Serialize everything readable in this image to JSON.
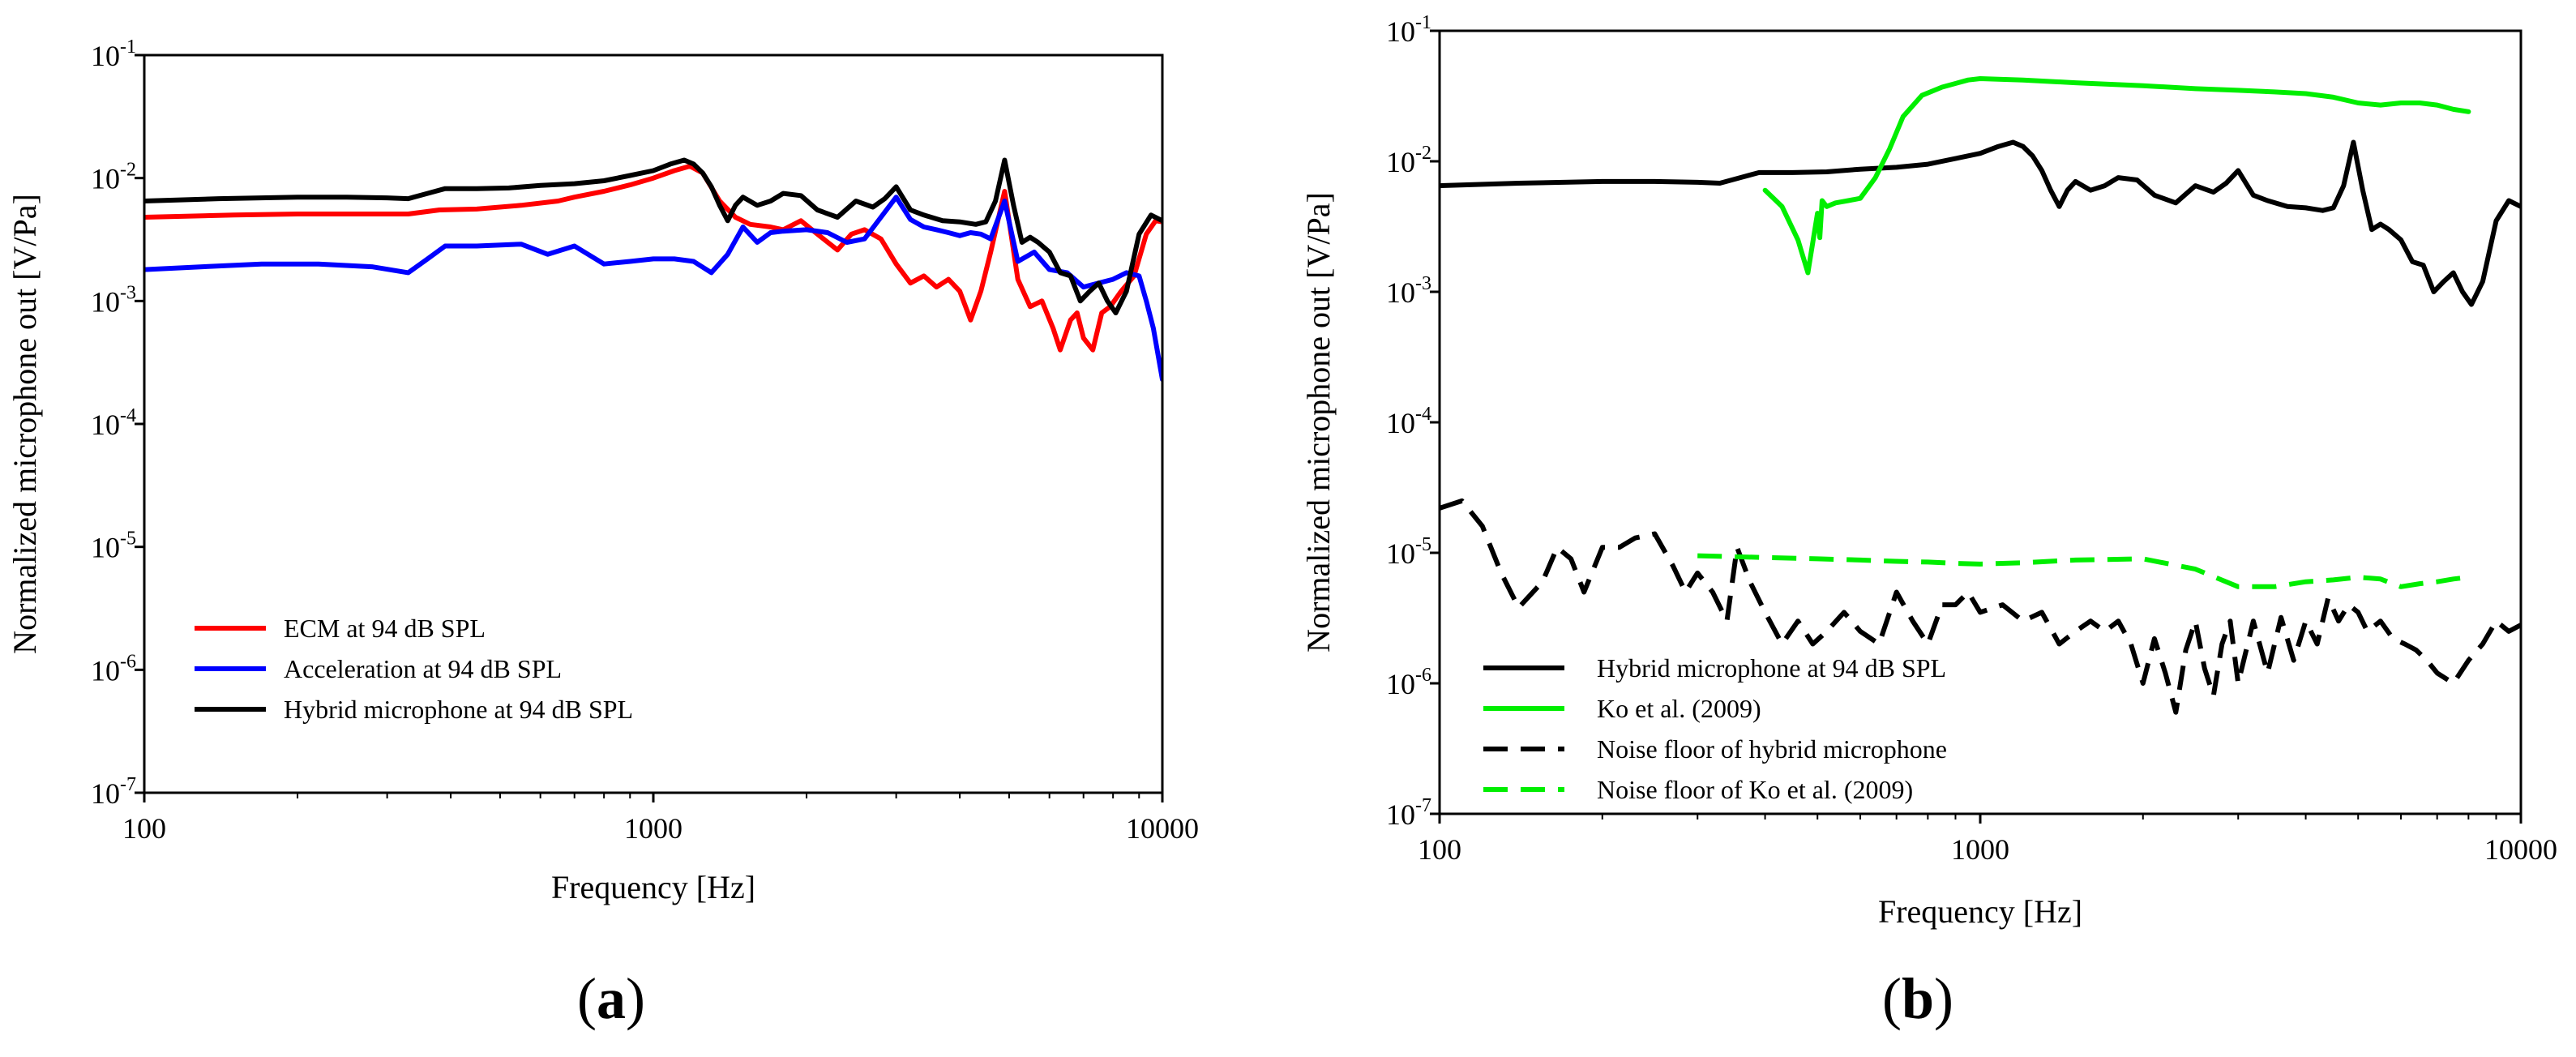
{
  "figure": {
    "panels": [
      {
        "open": "(",
        "letter": "a",
        "close": ")"
      },
      {
        "open": "(",
        "letter": "b",
        "close": ")"
      }
    ]
  },
  "chart_data": [
    {
      "type": "line",
      "panel": "(a)",
      "title": "",
      "xlabel": "Frequency [Hz]",
      "ylabel": "Normalized microphone out [V/Pa]",
      "xscale": "log",
      "yscale": "log",
      "xlim": [
        100,
        10000
      ],
      "ylim": [
        1e-07,
        0.1
      ],
      "x_ticks": [
        {
          "value": 100,
          "label": "100"
        },
        {
          "value": 1000,
          "label": "1000"
        },
        {
          "value": 10000,
          "label": "10000"
        }
      ],
      "y_ticks": [
        {
          "value": 1e-07,
          "base": "10",
          "exp": "-7"
        },
        {
          "value": 1e-06,
          "base": "10",
          "exp": "-6"
        },
        {
          "value": 1e-05,
          "base": "10",
          "exp": "-5"
        },
        {
          "value": 0.0001,
          "base": "10",
          "exp": "-4"
        },
        {
          "value": 0.001,
          "base": "10",
          "exp": "-3"
        },
        {
          "value": 0.01,
          "base": "10",
          "exp": "-2"
        },
        {
          "value": 0.1,
          "base": "10",
          "exp": "-1"
        }
      ],
      "legend_position": "bottom-left",
      "series": [
        {
          "name": "ECM at 94 dB SPL",
          "color": "#ff0000",
          "dash": "solid",
          "x": [
            100,
            150,
            200,
            250,
            330,
            380,
            450,
            550,
            650,
            700,
            800,
            900,
            1000,
            1100,
            1180,
            1250,
            1350,
            1450,
            1550,
            1700,
            1800,
            1950,
            2100,
            2300,
            2450,
            2600,
            2800,
            3000,
            3200,
            3400,
            3600,
            3800,
            4000,
            4200,
            4400,
            4600,
            4900,
            5200,
            5500,
            5800,
            6100,
            6300,
            6600,
            6800,
            7000,
            7300,
            7600,
            7900,
            8300,
            8800,
            9300,
            9700,
            10000
          ],
          "y": [
            0.0048,
            0.005,
            0.0051,
            0.0051,
            0.0051,
            0.0055,
            0.0056,
            0.006,
            0.0065,
            0.007,
            0.0078,
            0.0088,
            0.01,
            0.0115,
            0.0125,
            0.011,
            0.0065,
            0.0048,
            0.0042,
            0.004,
            0.0038,
            0.0045,
            0.0035,
            0.0026,
            0.0035,
            0.0038,
            0.0032,
            0.002,
            0.0014,
            0.0016,
            0.0013,
            0.0015,
            0.0012,
            0.0007,
            0.0012,
            0.0025,
            0.0078,
            0.0015,
            0.0009,
            0.001,
            0.0006,
            0.0004,
            0.0007,
            0.0008,
            0.0005,
            0.0004,
            0.0008,
            0.0009,
            0.0012,
            0.0016,
            0.0035,
            0.0045,
            0.0044
          ]
        },
        {
          "name": "Acceleration at 94 dB SPL",
          "color": "#0000ff",
          "dash": "solid",
          "x": [
            100,
            130,
            170,
            220,
            280,
            330,
            360,
            390,
            450,
            550,
            620,
            700,
            800,
            900,
            1000,
            1100,
            1200,
            1300,
            1400,
            1500,
            1600,
            1700,
            1800,
            2000,
            2200,
            2400,
            2600,
            2800,
            3000,
            3200,
            3400,
            3600,
            3800,
            4000,
            4200,
            4400,
            4600,
            4900,
            5200,
            5600,
            6000,
            6500,
            7000,
            7500,
            8000,
            8500,
            9000,
            9300,
            9600,
            10000
          ],
          "y": [
            0.0018,
            0.0019,
            0.002,
            0.002,
            0.0019,
            0.0017,
            0.0022,
            0.0028,
            0.0028,
            0.0029,
            0.0024,
            0.0028,
            0.002,
            0.0021,
            0.0022,
            0.0022,
            0.0021,
            0.0017,
            0.0024,
            0.004,
            0.003,
            0.0036,
            0.0037,
            0.0038,
            0.0036,
            0.003,
            0.0032,
            0.0048,
            0.007,
            0.0046,
            0.004,
            0.0038,
            0.0036,
            0.0034,
            0.0036,
            0.0035,
            0.0032,
            0.0065,
            0.0021,
            0.0025,
            0.0018,
            0.0017,
            0.0013,
            0.0014,
            0.0015,
            0.0017,
            0.0016,
            0.001,
            0.0006,
            0.00023
          ]
        },
        {
          "name": "Hybrid microphone at 94 dB SPL",
          "color": "#000000",
          "dash": "solid",
          "x": [
            100,
            140,
            200,
            250,
            300,
            330,
            360,
            390,
            450,
            520,
            600,
            700,
            800,
            900,
            1000,
            1080,
            1150,
            1200,
            1250,
            1300,
            1350,
            1400,
            1450,
            1500,
            1600,
            1700,
            1800,
            1950,
            2100,
            2300,
            2500,
            2700,
            2850,
            3000,
            3200,
            3400,
            3700,
            4000,
            4300,
            4500,
            4700,
            4900,
            5100,
            5300,
            5500,
            5700,
            6000,
            6300,
            6600,
            6900,
            7200,
            7500,
            7800,
            8100,
            8500,
            9000,
            9500,
            10000
          ],
          "y": [
            0.0065,
            0.0068,
            0.007,
            0.007,
            0.0069,
            0.0068,
            0.0075,
            0.0082,
            0.0082,
            0.0083,
            0.0087,
            0.009,
            0.0095,
            0.0105,
            0.0115,
            0.013,
            0.014,
            0.013,
            0.011,
            0.0085,
            0.006,
            0.0045,
            0.006,
            0.007,
            0.006,
            0.0065,
            0.0075,
            0.0072,
            0.0055,
            0.0048,
            0.0065,
            0.0058,
            0.0068,
            0.0085,
            0.0055,
            0.005,
            0.0045,
            0.0044,
            0.0042,
            0.0044,
            0.0065,
            0.014,
            0.006,
            0.003,
            0.0033,
            0.003,
            0.0025,
            0.0017,
            0.0016,
            0.001,
            0.0012,
            0.0014,
            0.001,
            0.0008,
            0.0012,
            0.0035,
            0.005,
            0.0045
          ]
        }
      ]
    },
    {
      "type": "line",
      "panel": "(b)",
      "title": "",
      "xlabel": "Frequency [Hz]",
      "ylabel": "Normalized microphone out [V/Pa]",
      "xscale": "log",
      "yscale": "log",
      "xlim": [
        100,
        10000
      ],
      "ylim": [
        1e-07,
        0.1
      ],
      "x_ticks": [
        {
          "value": 100,
          "label": "100"
        },
        {
          "value": 1000,
          "label": "1000"
        },
        {
          "value": 10000,
          "label": "10000"
        }
      ],
      "y_ticks": [
        {
          "value": 1e-07,
          "base": "10",
          "exp": "-7"
        },
        {
          "value": 1e-06,
          "base": "10",
          "exp": "-6"
        },
        {
          "value": 1e-05,
          "base": "10",
          "exp": "-5"
        },
        {
          "value": 0.0001,
          "base": "10",
          "exp": "-4"
        },
        {
          "value": 0.001,
          "base": "10",
          "exp": "-3"
        },
        {
          "value": 0.01,
          "base": "10",
          "exp": "-2"
        },
        {
          "value": 0.1,
          "base": "10",
          "exp": "-1"
        }
      ],
      "legend_position": "bottom-left",
      "series": [
        {
          "name": "Hybrid microphone at 94 dB SPL",
          "color": "#000000",
          "dash": "solid",
          "x": [
            100,
            140,
            200,
            250,
            300,
            330,
            360,
            390,
            450,
            520,
            600,
            700,
            800,
            900,
            1000,
            1080,
            1150,
            1200,
            1250,
            1300,
            1350,
            1400,
            1450,
            1500,
            1600,
            1700,
            1800,
            1950,
            2100,
            2300,
            2500,
            2700,
            2850,
            3000,
            3200,
            3400,
            3700,
            4000,
            4300,
            4500,
            4700,
            4900,
            5100,
            5300,
            5500,
            5700,
            6000,
            6300,
            6600,
            6900,
            7200,
            7500,
            7800,
            8100,
            8500,
            9000,
            9500,
            10000
          ],
          "y": [
            0.0065,
            0.0068,
            0.007,
            0.007,
            0.0069,
            0.0068,
            0.0075,
            0.0082,
            0.0082,
            0.0083,
            0.0087,
            0.009,
            0.0095,
            0.0105,
            0.0115,
            0.013,
            0.014,
            0.013,
            0.011,
            0.0085,
            0.006,
            0.0045,
            0.006,
            0.007,
            0.006,
            0.0065,
            0.0075,
            0.0072,
            0.0055,
            0.0048,
            0.0065,
            0.0058,
            0.0068,
            0.0085,
            0.0055,
            0.005,
            0.0045,
            0.0044,
            0.0042,
            0.0044,
            0.0065,
            0.014,
            0.006,
            0.003,
            0.0033,
            0.003,
            0.0025,
            0.0017,
            0.0016,
            0.001,
            0.0012,
            0.0014,
            0.001,
            0.0008,
            0.0012,
            0.0035,
            0.005,
            0.0045
          ]
        },
        {
          "name": "Ko et al. (2009)",
          "color": "#00ee00",
          "dash": "solid",
          "x": [
            400,
            430,
            460,
            480,
            500,
            505,
            510,
            520,
            540,
            570,
            600,
            640,
            680,
            720,
            780,
            850,
            950,
            1000,
            1200,
            1500,
            2000,
            2500,
            3000,
            3500,
            4000,
            4500,
            5000,
            5500,
            6000,
            6500,
            7000,
            7500,
            8000
          ],
          "y": [
            0.006,
            0.0045,
            0.0025,
            0.0014,
            0.004,
            0.0026,
            0.005,
            0.0045,
            0.0048,
            0.005,
            0.0052,
            0.0075,
            0.0125,
            0.022,
            0.032,
            0.037,
            0.042,
            0.043,
            0.042,
            0.04,
            0.038,
            0.036,
            0.035,
            0.034,
            0.033,
            0.031,
            0.028,
            0.027,
            0.028,
            0.028,
            0.027,
            0.025,
            0.024
          ]
        },
        {
          "name": "Noise floor of hybrid microphone",
          "color": "#000000",
          "dash": "dashed",
          "x": [
            100,
            110,
            120,
            130,
            140,
            155,
            165,
            175,
            185,
            200,
            215,
            230,
            250,
            270,
            285,
            300,
            320,
            340,
            355,
            375,
            400,
            430,
            460,
            490,
            520,
            560,
            600,
            650,
            700,
            750,
            800,
            850,
            900,
            950,
            1000,
            1100,
            1200,
            1300,
            1400,
            1500,
            1600,
            1700,
            1800,
            1900,
            2000,
            2100,
            2200,
            2300,
            2400,
            2500,
            2600,
            2700,
            2800,
            2900,
            3000,
            3200,
            3400,
            3600,
            3800,
            4000,
            4200,
            4400,
            4600,
            4800,
            5000,
            5200,
            5500,
            5800,
            6100,
            6400,
            6700,
            7000,
            7500,
            8000,
            8500,
            9000,
            9500,
            10000
          ],
          "y": [
            2.2e-05,
            2.5e-05,
            1.6e-05,
            7e-06,
            3.8e-06,
            6e-06,
            1.1e-05,
            9e-06,
            5e-06,
            1.1e-05,
            1.1e-05,
            1.3e-05,
            1.4e-05,
            8e-06,
            5e-06,
            7e-06,
            5e-06,
            3e-06,
            1.1e-05,
            6e-06,
            3.5e-06,
            2e-06,
            3e-06,
            2e-06,
            2.5e-06,
            3.5e-06,
            2.5e-06,
            2e-06,
            5e-06,
            3e-06,
            2e-06,
            4e-06,
            4e-06,
            5e-06,
            3.5e-06,
            4e-06,
            3e-06,
            3.5e-06,
            2e-06,
            2.5e-06,
            3e-06,
            2.5e-06,
            3e-06,
            2e-06,
            1e-06,
            2.2e-06,
            1.2e-06,
            6e-07,
            1.8e-06,
            3e-06,
            1.3e-06,
            8e-07,
            2e-06,
            3e-06,
            1e-06,
            3e-06,
            1.2e-06,
            3.2e-06,
            1.5e-06,
            3e-06,
            2e-06,
            4.5e-06,
            3e-06,
            4e-06,
            3.5e-06,
            2.5e-06,
            3e-06,
            2.2e-06,
            2e-06,
            1.8e-06,
            1.5e-06,
            1.2e-06,
            1e-06,
            1.5e-06,
            2e-06,
            3e-06,
            2.5e-06,
            2.8e-06
          ]
        },
        {
          "name": "Noise floor of Ko et al. (2009)",
          "color": "#00ee00",
          "dash": "dashed",
          "x": [
            300,
            400,
            500,
            600,
            700,
            800,
            900,
            1000,
            1200,
            1500,
            2000,
            2500,
            3000,
            3500,
            4000,
            4500,
            5000,
            5500,
            6000,
            6500,
            7000,
            7500,
            8000
          ],
          "y": [
            9.5e-06,
            9.2e-06,
            9e-06,
            8.8e-06,
            8.6e-06,
            8.5e-06,
            8.3e-06,
            8.2e-06,
            8.4e-06,
            8.8e-06,
            9e-06,
            7.5e-06,
            5.5e-06,
            5.5e-06,
            6e-06,
            6.2e-06,
            6.5e-06,
            6.3e-06,
            5.5e-06,
            5.8e-06,
            6e-06,
            6.3e-06,
            6.5e-06
          ]
        }
      ]
    }
  ]
}
